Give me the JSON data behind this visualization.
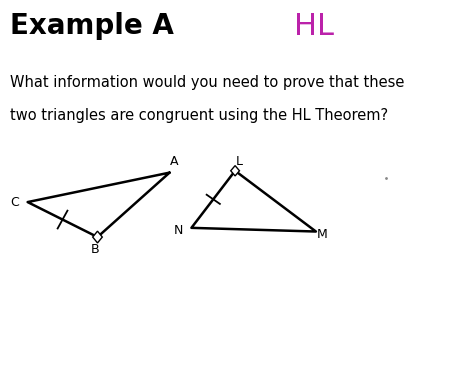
{
  "title": "Example A",
  "hl_text": "HL",
  "question_line1": "What information would you need to prove that these",
  "question_line2": "two triangles are congruent using the HL Theorem?",
  "bg_color": "#ffffff",
  "title_color": "#000000",
  "hl_color": "#bb22aa",
  "text_color": "#000000",
  "tri1": {
    "A": [
      0.385,
      0.535
    ],
    "B": [
      0.22,
      0.36
    ],
    "C": [
      0.06,
      0.455
    ]
  },
  "tri1_labels": {
    "A": [
      0.395,
      0.565,
      "A"
    ],
    "B": [
      0.215,
      0.325,
      "B"
    ],
    "C": [
      0.03,
      0.455,
      "C"
    ]
  },
  "tri2": {
    "L": [
      0.535,
      0.54
    ],
    "N": [
      0.435,
      0.385
    ],
    "M": [
      0.72,
      0.375
    ]
  },
  "tri2_labels": {
    "L": [
      0.545,
      0.565,
      "L"
    ],
    "N": [
      0.405,
      0.378,
      "N"
    ],
    "M": [
      0.735,
      0.368,
      "M"
    ]
  },
  "line_width": 1.8,
  "fig_width": 4.74,
  "fig_height": 3.71,
  "dpi": 100
}
